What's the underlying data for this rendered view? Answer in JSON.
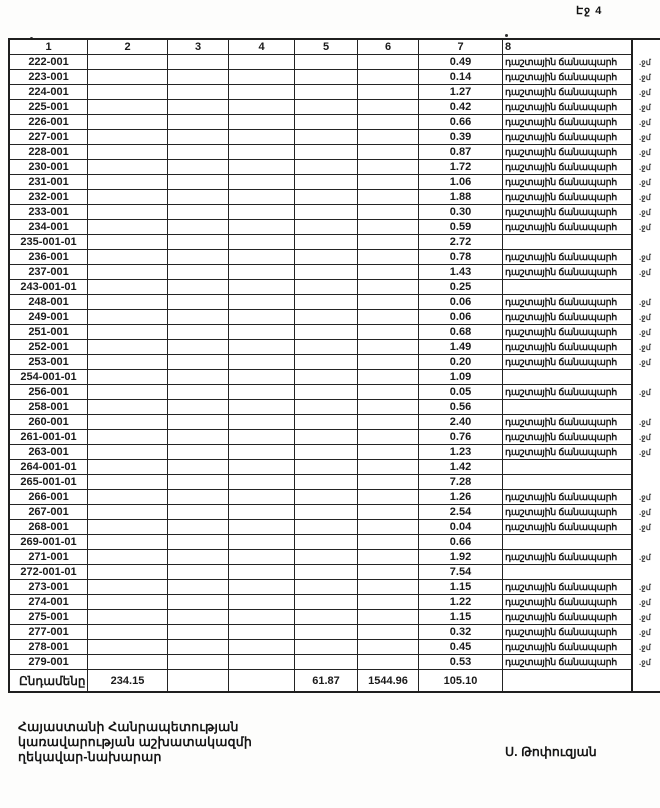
{
  "page": {
    "label": "Էջ 4"
  },
  "table": {
    "headers": [
      "1",
      "2",
      "3",
      "4",
      "5",
      "6",
      "7",
      "8"
    ],
    "edge_mark": ".ջմ",
    "rows": [
      {
        "code": "222-001",
        "value": "0.49",
        "label": "դաշտային ճանապարհ"
      },
      {
        "code": "223-001",
        "value": "0.14",
        "label": "դաշտային ճանապարհ"
      },
      {
        "code": "224-001",
        "value": "1.27",
        "label": "դաշտային ճանապարհ"
      },
      {
        "code": "225-001",
        "value": "0.42",
        "label": "դաշտային ճանապարհ"
      },
      {
        "code": "226-001",
        "value": "0.66",
        "label": "դաշտային ճանապարհ"
      },
      {
        "code": "227-001",
        "value": "0.39",
        "label": "դաշտային ճանապարհ"
      },
      {
        "code": "228-001",
        "value": "0.87",
        "label": "դաշտային ճանապարհ"
      },
      {
        "code": "230-001",
        "value": "1.72",
        "label": "դաշտային ճանապարհ"
      },
      {
        "code": "231-001",
        "value": "1.06",
        "label": "դաշտային ճանապարհ"
      },
      {
        "code": "232-001",
        "value": "1.88",
        "label": "դաշտային ճանապարհ"
      },
      {
        "code": "233-001",
        "value": "0.30",
        "label": "դաշտային ճանապարհ"
      },
      {
        "code": "234-001",
        "value": "0.59",
        "label": "դաշտային ճանապարհ"
      },
      {
        "code": "235-001-01",
        "value": "2.72",
        "label": ""
      },
      {
        "code": "236-001",
        "value": "0.78",
        "label": "դաշտային ճանապարհ"
      },
      {
        "code": "237-001",
        "value": "1.43",
        "label": "դաշտային ճանապարհ"
      },
      {
        "code": "243-001-01",
        "value": "0.25",
        "label": ""
      },
      {
        "code": "248-001",
        "value": "0.06",
        "label": "դաշտային ճանապարհ"
      },
      {
        "code": "249-001",
        "value": "0.06",
        "label": "դաշտային ճանապարհ"
      },
      {
        "code": "251-001",
        "value": "0.68",
        "label": "դաշտային ճանապարհ"
      },
      {
        "code": "252-001",
        "value": "1.49",
        "label": "դաշտային ճանապարհ"
      },
      {
        "code": "253-001",
        "value": "0.20",
        "label": "դաշտային ճանապարհ"
      },
      {
        "code": "254-001-01",
        "value": "1.09",
        "label": ""
      },
      {
        "code": "256-001",
        "value": "0.05",
        "label": "դաշտային ճանապարհ"
      },
      {
        "code": "258-001",
        "value": "0.56",
        "label": ""
      },
      {
        "code": "260-001",
        "value": "2.40",
        "label": "դաշտային ճանապարհ"
      },
      {
        "code": "261-001-01",
        "value": "0.76",
        "label": "դաշտային ճանապարհ"
      },
      {
        "code": "263-001",
        "value": "1.23",
        "label": "դաշտային ճանապարհ"
      },
      {
        "code": "264-001-01",
        "value": "1.42",
        "label": ""
      },
      {
        "code": "265-001-01",
        "value": "7.28",
        "label": ""
      },
      {
        "code": "266-001",
        "value": "1.26",
        "label": "դաշտային ճանապարհ"
      },
      {
        "code": "267-001",
        "value": "2.54",
        "label": "դաշտային ճանապարհ"
      },
      {
        "code": "268-001",
        "value": "0.04",
        "label": "դաշտային ճանապարհ"
      },
      {
        "code": "269-001-01",
        "value": "0.66",
        "label": ""
      },
      {
        "code": "271-001",
        "value": "1.92",
        "label": "դաշտային ճանապարհ"
      },
      {
        "code": "272-001-01",
        "value": "7.54",
        "label": ""
      },
      {
        "code": "273-001",
        "value": "1.15",
        "label": "դաշտային ճանապարհ"
      },
      {
        "code": "274-001",
        "value": "1.22",
        "label": "դաշտային ճանապարհ"
      },
      {
        "code": "275-001",
        "value": "1.15",
        "label": "դաշտային ճանապարհ"
      },
      {
        "code": "277-001",
        "value": "0.32",
        "label": "դաշտային ճանապարհ"
      },
      {
        "code": "278-001",
        "value": "0.45",
        "label": "դաշտային ճանապարհ"
      },
      {
        "code": "279-001",
        "value": "0.53",
        "label": "դաշտային ճանապարհ"
      }
    ],
    "total": {
      "label": "Ընդամենը",
      "col2": "234.15",
      "col5": "61.87",
      "col6": "1544.96",
      "col7": "105.10"
    }
  },
  "footer": {
    "lines": [
      "Հայաստանի Հանրապետության",
      "կառավարության աշխատակազմի",
      "ղեկավար-նախարար"
    ],
    "signature": "Ս. Թոփուզյան"
  }
}
